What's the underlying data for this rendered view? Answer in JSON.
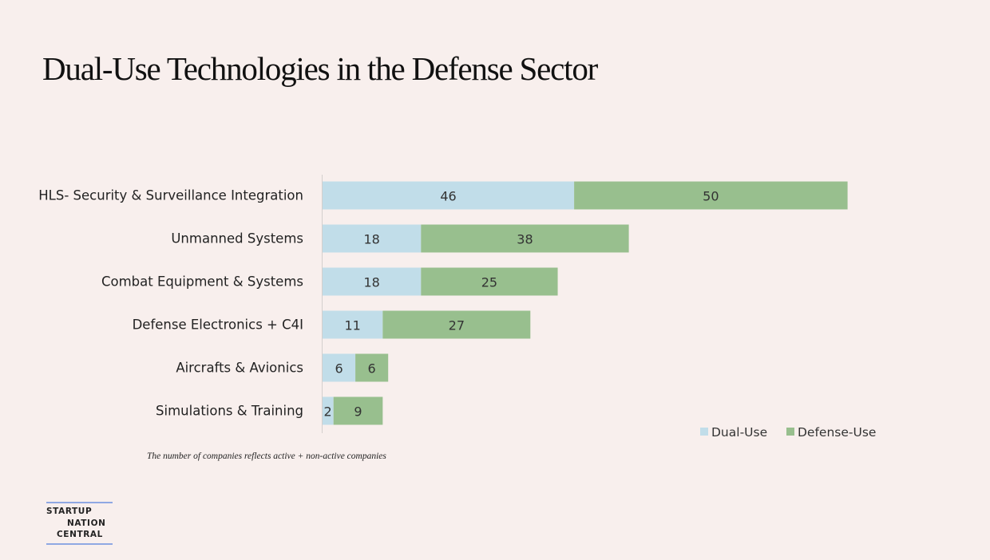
{
  "slide": {
    "title": "Dual-Use Technologies in the Defense Sector",
    "footnote": "The number of companies reflects active + non-active companies",
    "logo": {
      "line1": "STARTUP",
      "line2": "NATION",
      "line3": "CENTRAL"
    }
  },
  "colors": {
    "background": "#f8efed",
    "dual_use": "#c1dde9",
    "defense_use": "#98bf8e",
    "logo_rule": "#8fa8e3"
  },
  "chart_data": {
    "type": "bar",
    "orientation": "horizontal",
    "stacked": true,
    "categories": [
      "HLS- Security & Surveillance Integration",
      "Unmanned Systems",
      "Combat Equipment & Systems",
      "Defense Electronics + C4I",
      "Aircrafts & Avionics",
      "Simulations & Training"
    ],
    "series": [
      {
        "name": "Dual-Use",
        "values": [
          46,
          18,
          18,
          11,
          6,
          2
        ],
        "color": "#c1dde9"
      },
      {
        "name": "Defense-Use",
        "values": [
          50,
          38,
          25,
          27,
          6,
          9
        ],
        "color": "#98bf8e"
      }
    ],
    "xlim": [
      0,
      110
    ],
    "grid": false,
    "data_labels": true,
    "legend_position": "bottom-right"
  }
}
